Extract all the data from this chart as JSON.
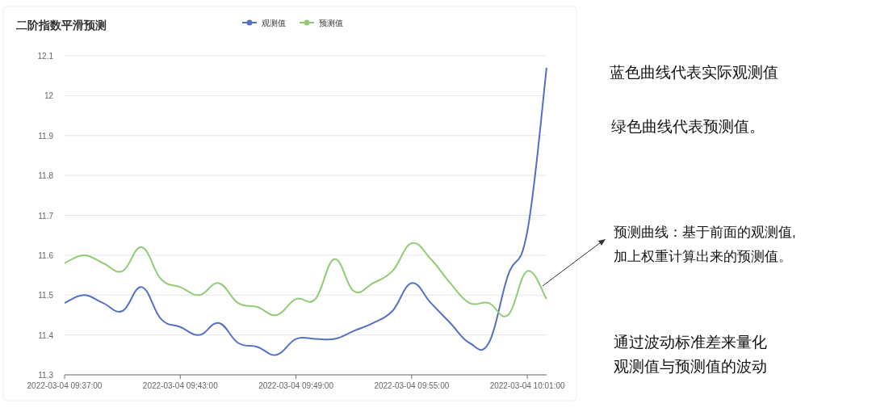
{
  "chart_data": {
    "type": "line",
    "title": "二阶指数平滑预测",
    "x": [
      "2022-03-04T09:37",
      "2022-03-04T09:38",
      "2022-03-04T09:39",
      "2022-03-04T09:40",
      "2022-03-04T09:41",
      "2022-03-04T09:42",
      "2022-03-04T09:43",
      "2022-03-04T09:44",
      "2022-03-04T09:45",
      "2022-03-04T09:46",
      "2022-03-04T09:47",
      "2022-03-04T09:48",
      "2022-03-04T09:49",
      "2022-03-04T09:50",
      "2022-03-04T09:51",
      "2022-03-04T09:52",
      "2022-03-04T09:53",
      "2022-03-04T09:54",
      "2022-03-04T09:55",
      "2022-03-04T09:56",
      "2022-03-04T09:57",
      "2022-03-04T09:58",
      "2022-03-04T09:59",
      "2022-03-04T10:00",
      "2022-03-04T10:01",
      "2022-03-04T10:02"
    ],
    "series": [
      {
        "name": "观测值",
        "color": "#5470c6",
        "values": [
          11.48,
          11.5,
          11.48,
          11.46,
          11.52,
          11.44,
          11.42,
          11.4,
          11.43,
          11.38,
          11.37,
          11.35,
          11.39,
          11.39,
          11.39,
          11.41,
          11.43,
          11.46,
          11.53,
          11.48,
          11.43,
          11.38,
          11.38,
          11.55,
          11.66,
          12.07
        ]
      },
      {
        "name": "预测值",
        "color": "#91cc75",
        "values": [
          11.58,
          11.6,
          11.58,
          11.56,
          11.62,
          11.54,
          11.52,
          11.5,
          11.53,
          11.48,
          11.47,
          11.45,
          11.49,
          11.49,
          11.59,
          11.51,
          11.53,
          11.56,
          11.63,
          11.59,
          11.53,
          11.48,
          11.48,
          11.45,
          11.56,
          11.49
        ]
      }
    ],
    "xlim": [
      "2022-03-04T09:37",
      "2022-03-04T10:02"
    ],
    "xticks": [
      {
        "value": "2022-03-04T09:37",
        "label": "2022-03-04 09:37:00"
      },
      {
        "value": "2022-03-04T09:43",
        "label": "2022-03-04 09:43:00"
      },
      {
        "value": "2022-03-04T09:49",
        "label": "2022-03-04 09:49:00"
      },
      {
        "value": "2022-03-04T09:55",
        "label": "2022-03-04 09:55:00"
      },
      {
        "value": "2022-03-04T10:01",
        "label": "2022-03-04 10:01:00"
      }
    ],
    "ylim": [
      11.3,
      12.1
    ],
    "yticks": [
      11.3,
      11.4,
      11.5,
      11.6,
      11.7,
      11.8,
      11.9,
      12,
      12.1
    ],
    "grid": "y",
    "legend": "top",
    "annotations": [
      "蓝色曲线代表实际观测值",
      "绿色曲线代表预测值。",
      "预测曲线：基于前面的观测值,",
      "加上权重计算出来的预测值。",
      "通过波动标准差来量化",
      "观测值与预测值的波动"
    ]
  }
}
